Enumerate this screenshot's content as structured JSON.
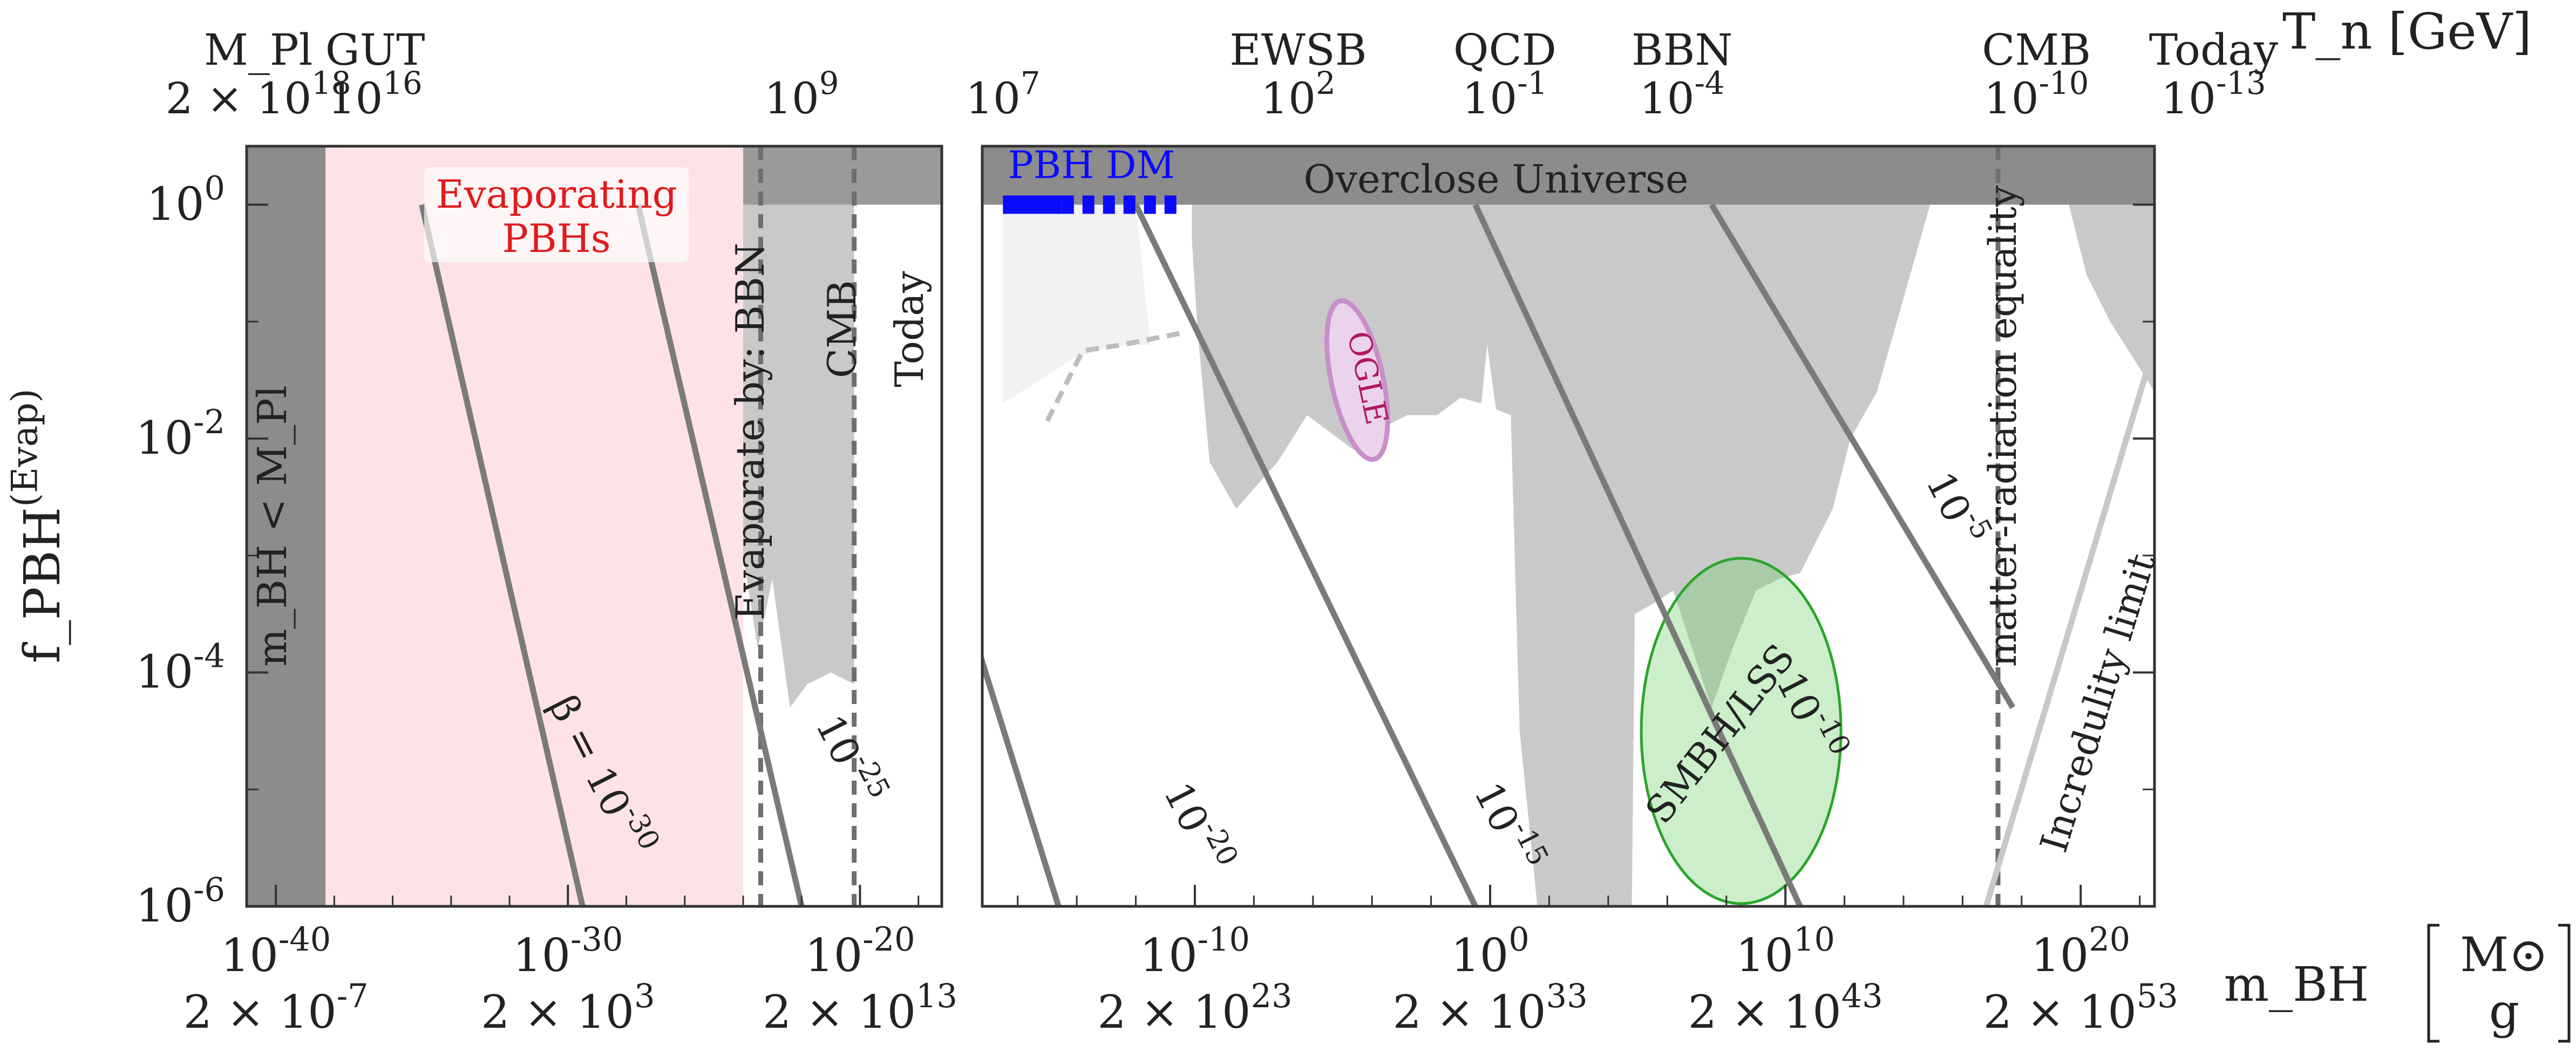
{
  "chart_data": {
    "type": "area",
    "title": "",
    "xlabel": "m_BH",
    "xlabel_units": [
      "M⊙",
      "g"
    ],
    "ylabel": "f_PBH^(Evap)",
    "top_axis_label": "T_n [GeV]",
    "x_scale": "log10 (M_sun)",
    "y_scale": "log10",
    "left_panel_xlim": [
      -41,
      -17.2
    ],
    "right_panel_xlim": [
      -17.2,
      22.5
    ],
    "ylim": [
      -6,
      0.5
    ],
    "bottom_ticks": [
      {
        "solar": "10^-40",
        "grams": "2 × 10^-7",
        "x": -40
      },
      {
        "solar": "10^-30",
        "grams": "2 × 10^3",
        "x": -30
      },
      {
        "solar": "10^-20",
        "grams": "2 × 10^13",
        "x": -20
      },
      {
        "solar": "10^-10",
        "grams": "2 × 10^23",
        "x": -10
      },
      {
        "solar": "10^0",
        "grams": "2 × 10^33",
        "x": 0
      },
      {
        "solar": "10^10",
        "grams": "2 × 10^43",
        "x": 10
      },
      {
        "solar": "10^20",
        "grams": "2 × 10^53",
        "x": 20
      }
    ],
    "y_ticks": [
      {
        "label": "10^0",
        "y": 0
      },
      {
        "label": "10^-2",
        "y": -2
      },
      {
        "label": "10^-4",
        "y": -4
      },
      {
        "label": "10^-6",
        "y": -6
      }
    ],
    "top_ticks": [
      {
        "name": "M_Pl",
        "value": "2 × 10^18",
        "x": -40.6
      },
      {
        "name": "GUT",
        "value": "10^16",
        "x": -36.6
      },
      {
        "name": "",
        "value": "10^9",
        "x": -22.0
      },
      {
        "name": "",
        "value": "10^7",
        "x": -16.5
      },
      {
        "name": "EWSB",
        "value": "10^2",
        "x": -6.5
      },
      {
        "name": "QCD",
        "value": "10^-1",
        "x": 0.5
      },
      {
        "name": "BBN",
        "value": "10^-4",
        "x": 6.5
      },
      {
        "name": "CMB",
        "value": "10^-10",
        "x": 18.5
      },
      {
        "name": "Today",
        "value": "10^-13",
        "x": 24.5
      }
    ],
    "vertical_markers": [
      {
        "label": "Evaporate by: BBN",
        "x": -23.4
      },
      {
        "label": "CMB",
        "x": -20.2
      },
      {
        "label": "Today",
        "x": -20.1
      },
      {
        "label": "matter-radiation equality",
        "x": 17.2
      }
    ],
    "regions": [
      {
        "name": "m_BH < M_Pl",
        "label": "m_BH < M_Pl",
        "x_range": [
          -41,
          -38.3
        ],
        "color": "#8c8c8c"
      },
      {
        "name": "Evaporating PBHs",
        "label": "Evaporating PBHs",
        "x_range": [
          -38.3,
          -24.0
        ],
        "color": "#fde3e6"
      },
      {
        "name": "Overclose Universe",
        "label": "Overclose Universe",
        "y_range": [
          0,
          0.5
        ],
        "color": "#8c8c8c"
      }
    ],
    "constraint_outline": [
      [
        -24.0,
        -3.0
      ],
      [
        -23.5,
        -3.8
      ],
      [
        -23.0,
        -3.2
      ],
      [
        -22.4,
        -4.3
      ],
      [
        -21.8,
        -4.1
      ],
      [
        -21.0,
        -4.0
      ],
      [
        -20.2,
        -4.1
      ],
      [
        -20.2,
        0
      ],
      [
        -24.0,
        0
      ]
    ],
    "right_constraint_outline": [
      [
        -10.1,
        0
      ],
      [
        -10.1,
        -0.3
      ],
      [
        -9.9,
        -1.1
      ],
      [
        -9.5,
        -2.2
      ],
      [
        -8.6,
        -2.6
      ],
      [
        -7.2,
        -2.2
      ],
      [
        -6.2,
        -1.8
      ],
      [
        -4.6,
        -2.1
      ],
      [
        -3.6,
        -1.9
      ],
      [
        -2.8,
        -1.8
      ],
      [
        -1.8,
        -1.8
      ],
      [
        -1.0,
        -1.65
      ],
      [
        -0.3,
        -1.7
      ],
      [
        -0.1,
        -1.2
      ],
      [
        0.2,
        -1.75
      ],
      [
        0.7,
        -1.8
      ],
      [
        1.0,
        -4.5
      ],
      [
        1.6,
        -6
      ],
      [
        4.8,
        -6
      ],
      [
        4.9,
        -3.5
      ],
      [
        5.6,
        -3.4
      ],
      [
        6.2,
        -3.3
      ],
      [
        7.5,
        -4.3
      ],
      [
        8.2,
        -3.8
      ],
      [
        9.0,
        -3.3
      ],
      [
        9.8,
        -3.2
      ],
      [
        10.5,
        -3.15
      ],
      [
        11.6,
        -2.6
      ],
      [
        12.2,
        -2.0
      ],
      [
        13.1,
        -1.6
      ],
      [
        14.0,
        -0.8
      ],
      [
        14.9,
        0
      ],
      [
        19.6,
        0
      ],
      [
        20.2,
        -0.6
      ],
      [
        21.0,
        -1.0
      ],
      [
        22.0,
        -1.4
      ],
      [
        22.5,
        -1.6
      ],
      [
        22.5,
        0
      ]
    ],
    "light_region_outline": [
      [
        -16.5,
        0
      ],
      [
        -12.0,
        0
      ],
      [
        -11.5,
        -1.2
      ],
      [
        -12.5,
        -1.2
      ],
      [
        -14.0,
        -1.3
      ],
      [
        -16.5,
        -1.7
      ]
    ],
    "dashed_curve": [
      [
        -15.0,
        -1.85
      ],
      [
        -13.8,
        -1.25
      ],
      [
        -12.5,
        -1.2
      ],
      [
        -10.5,
        -1.1
      ]
    ],
    "pbh_dm": {
      "label": "PBH DM",
      "solid": [
        -16.5,
        -14.5
      ],
      "dashed": [
        -14.5,
        -10.5
      ],
      "y": 0
    },
    "ogle": {
      "label": "OGLE",
      "center": [
        -4.5,
        -1.5
      ],
      "color": "#c88fca"
    },
    "smbh_lss": {
      "label": "SMBH/LSS",
      "center": [
        8.5,
        -4.5
      ],
      "color": "#6ccf6b"
    },
    "beta_lines": [
      {
        "label": "β = 10^-30",
        "points": [
          [
            -35.0,
            0
          ],
          [
            -29.5,
            -6
          ]
        ]
      },
      {
        "label": "10^-25",
        "points": [
          [
            -27.6,
            0
          ],
          [
            -22.0,
            -6
          ]
        ]
      },
      {
        "label": "10^-20",
        "points": [
          [
            -17.2,
            -2.8
          ],
          [
            -14.0,
            -6.5
          ]
        ]
      },
      {
        "label": "10^-15",
        "points": [
          [
            -12.0,
            0
          ],
          [
            -0.5,
            -6
          ]
        ]
      },
      {
        "label": "10^-10",
        "points": [
          [
            -0.5,
            0
          ],
          [
            10.5,
            -6
          ]
        ]
      },
      {
        "label": "10^-5",
        "points": [
          [
            7.5,
            0
          ],
          [
            17.7,
            -4.3
          ]
        ]
      }
    ],
    "incredulity_limit": {
      "label": "Incredulity limit",
      "points": [
        [
          16.8,
          -6
        ],
        [
          22.5,
          -1.2
        ]
      ]
    }
  }
}
